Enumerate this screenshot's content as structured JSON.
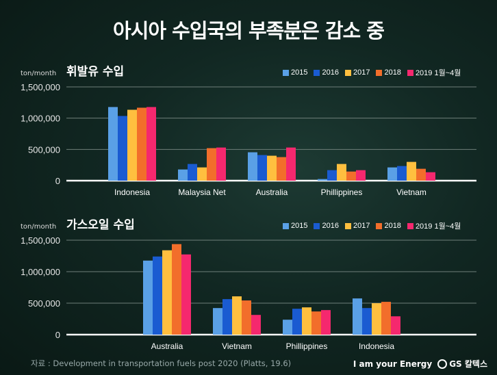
{
  "title": "아시아 수입국의 부족분은 감소 중",
  "source": "자료 : Development in transportation fuels post 2020 (Platts, 19.6)",
  "footer": {
    "slogan": "I am your Energy",
    "brand": "GS 칼텍스"
  },
  "colors": [
    "#5aa0e6",
    "#1a5bd1",
    "#ffbf3f",
    "#f26e2b",
    "#f5286e"
  ],
  "chart_data": [
    {
      "type": "bar",
      "title": "휘발유 수입",
      "ylabel": "ton/month",
      "ylim": [
        0,
        1500000
      ],
      "yticks": [
        "0",
        "500,000",
        "1,000,000",
        "1,500,000"
      ],
      "ytick_values": [
        0,
        500000,
        1000000,
        1500000
      ],
      "grid": true,
      "legend": "top-right",
      "categories": [
        "Indonesia",
        "Malaysia Net",
        "Australia",
        "Phillippines",
        "Vietnam"
      ],
      "series": [
        {
          "name": "2015",
          "values": [
            1178000,
            179000,
            454000,
            26000,
            212000
          ]
        },
        {
          "name": "2016",
          "values": [
            1035000,
            267000,
            410000,
            168000,
            234000
          ]
        },
        {
          "name": "2017",
          "values": [
            1134000,
            212000,
            399000,
            267000,
            300000
          ]
        },
        {
          "name": "2018",
          "values": [
            1167000,
            520000,
            377000,
            146000,
            190000
          ]
        },
        {
          "name": "2019 1월~4월",
          "values": [
            1178000,
            530000,
            530000,
            168000,
            135000
          ]
        }
      ]
    },
    {
      "type": "bar",
      "title": "가스오일 수입",
      "ylabel": "ton/month",
      "ylim": [
        0,
        1500000
      ],
      "yticks": [
        "0",
        "500,000",
        "1,000,000",
        "1,500,000"
      ],
      "ytick_values": [
        0,
        500000,
        1000000,
        1500000
      ],
      "grid": true,
      "legend": "top-right",
      "categories": [
        "Australia",
        "Vietnam",
        "Phillippines",
        "Indonesia"
      ],
      "series": [
        {
          "name": "2015",
          "values": [
            1176000,
            422000,
            237000,
            575000
          ]
        },
        {
          "name": "2016",
          "values": [
            1241000,
            564000,
            411000,
            422000
          ]
        },
        {
          "name": "2017",
          "values": [
            1340000,
            608000,
            433000,
            499000
          ]
        },
        {
          "name": "2018",
          "values": [
            1438000,
            543000,
            368000,
            521000
          ]
        },
        {
          "name": "2019 1월~4월",
          "values": [
            1274000,
            313000,
            390000,
            291000
          ]
        }
      ]
    }
  ]
}
